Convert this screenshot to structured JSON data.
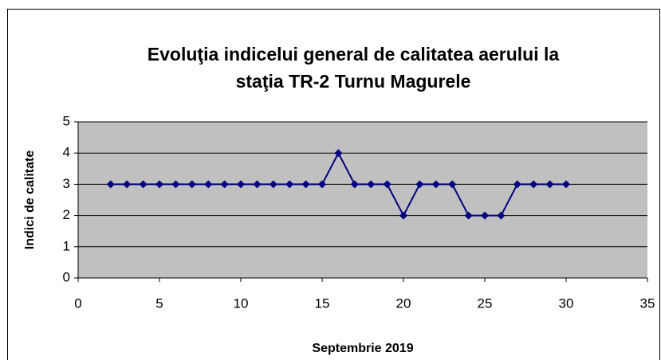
{
  "chart_data": {
    "type": "line",
    "title": [
      "Evoluţia indicelui general de calitatea aerului la",
      "staţia TR-2 Turnu Magurele"
    ],
    "x_label": "Septembrie 2019",
    "y_label": "Indici de calitate",
    "x": [
      2,
      3,
      4,
      5,
      6,
      7,
      8,
      9,
      10,
      11,
      12,
      13,
      14,
      15,
      16,
      17,
      18,
      19,
      20,
      21,
      22,
      23,
      24,
      25,
      26,
      27,
      28,
      29,
      30
    ],
    "series": [
      {
        "color": "#000080",
        "values": [
          3,
          3,
          3,
          3,
          3,
          3,
          3,
          3,
          3,
          3,
          3,
          3,
          3,
          3,
          4,
          3,
          3,
          3,
          2,
          3,
          3,
          3,
          2,
          2,
          2,
          3,
          3,
          3,
          3
        ]
      }
    ],
    "xlim": [
      0,
      35
    ],
    "xticks": [
      0,
      5,
      10,
      15,
      20,
      25,
      30,
      35
    ],
    "ylim": [
      0,
      5
    ],
    "yticks": [
      0,
      1,
      2,
      3,
      4,
      5
    ],
    "grid": true,
    "plot_background": "#c0c0c0"
  }
}
